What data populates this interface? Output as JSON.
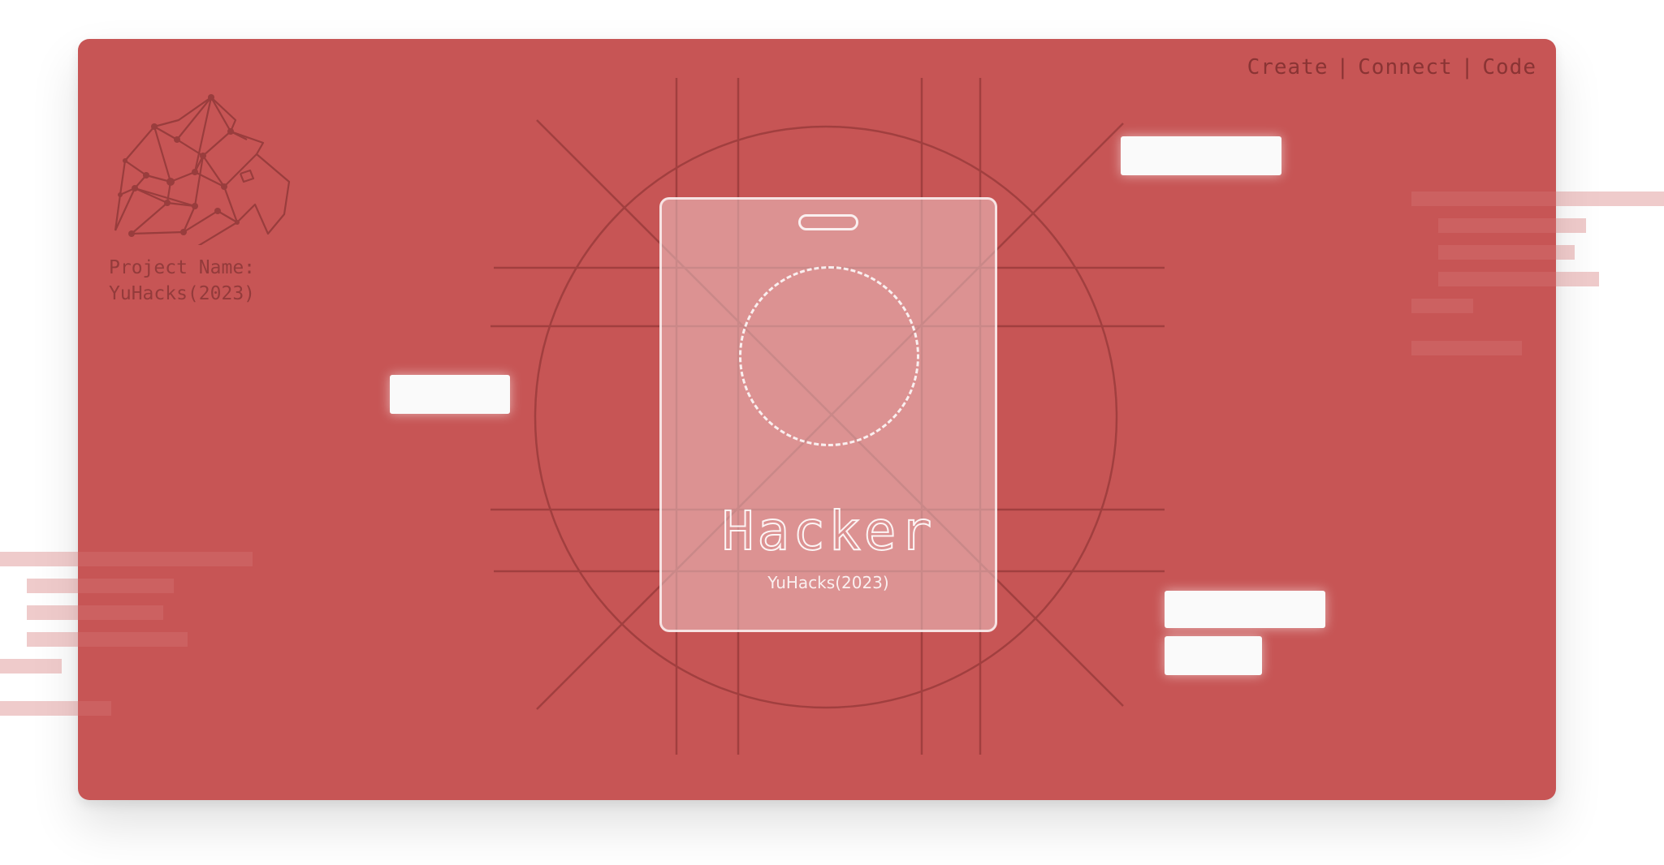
{
  "header": {
    "tagline_items": [
      "Create",
      "Connect",
      "Code"
    ],
    "separator": "|"
  },
  "project": {
    "label": "Project Name:",
    "value": "YuHacks(2023)"
  },
  "badge": {
    "role": "Hacker",
    "event": "YuHacks(2023)"
  },
  "icons": {
    "logo": "polygonal-lion-head-icon"
  },
  "colors": {
    "board": "#c75555",
    "line": "#a13f3f",
    "badge_outline": "#ffffff",
    "label_text": "#8a3434",
    "placeholder_bar": "#fafafa"
  }
}
